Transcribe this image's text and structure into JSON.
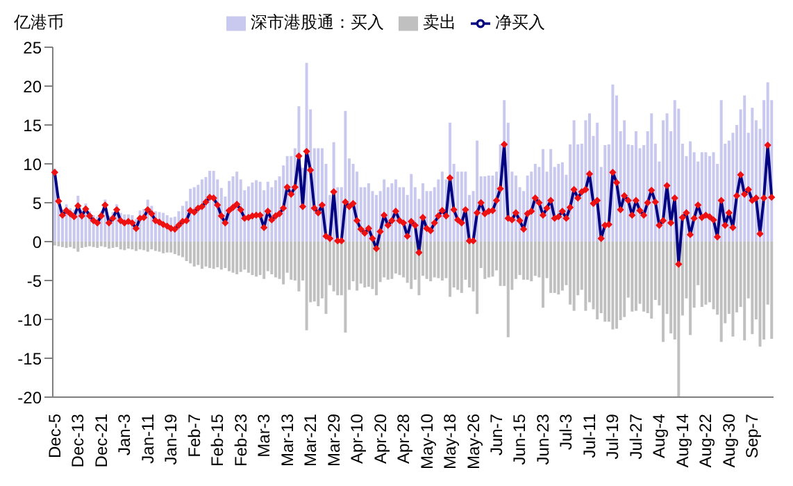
{
  "chart_data": {
    "type": "bar",
    "ylabel": "亿港币",
    "stacked": true,
    "legend": "top",
    "marker": "diamond",
    "categories": [
      "Dec-5",
      null,
      null,
      null,
      null,
      null,
      "Dec-13",
      null,
      null,
      null,
      null,
      null,
      "Dec-21",
      null,
      null,
      null,
      null,
      null,
      "Jan-3",
      null,
      null,
      null,
      null,
      null,
      "Jan-11",
      null,
      null,
      null,
      null,
      null,
      "Jan-19",
      null,
      null,
      null,
      null,
      null,
      "Feb-7",
      null,
      null,
      null,
      null,
      null,
      "Feb-15",
      null,
      null,
      null,
      null,
      null,
      "Feb-23",
      null,
      null,
      null,
      null,
      null,
      "Mar-3",
      null,
      null,
      null,
      null,
      null,
      "Mar-13",
      null,
      null,
      null,
      null,
      null,
      "Mar-21",
      null,
      null,
      null,
      null,
      null,
      "Mar-29",
      null,
      null,
      null,
      null,
      null,
      "Apr-10",
      null,
      null,
      null,
      null,
      null,
      "Apr-20",
      null,
      null,
      null,
      null,
      null,
      "Apr-28",
      null,
      null,
      null,
      null,
      null,
      "May-10",
      null,
      null,
      null,
      null,
      null,
      "May-18",
      null,
      null,
      null,
      null,
      null,
      "May-26",
      null,
      null,
      null,
      null,
      null,
      "Jun-7",
      null,
      null,
      null,
      null,
      null,
      "Jun-15",
      null,
      null,
      null,
      null,
      null,
      "Jun-23",
      null,
      null,
      null,
      null,
      null,
      "Jul-3",
      null,
      null,
      null,
      null,
      null,
      "Jul-11",
      null,
      null,
      null,
      null,
      null,
      "Jul-19",
      null,
      null,
      null,
      null,
      null,
      "Jul-27",
      null,
      null,
      null,
      null,
      null,
      "Aug-4",
      null,
      null,
      null,
      null,
      null,
      "Aug-14",
      null,
      null,
      null,
      null,
      null,
      "Aug-22",
      null,
      null,
      null,
      null,
      null,
      "Aug-30",
      null,
      null,
      null,
      null,
      null,
      "Sep-7",
      null,
      null,
      null,
      null,
      null
    ],
    "series": [
      {
        "name": "深市港股通：买入",
        "color": "#c9c9ef",
        "values": [
          9.4,
          5.8,
          4.1,
          4.8,
          4.3,
          4.1,
          5.9,
          4.1,
          4.9,
          3.9,
          3.4,
          3.2,
          3.9,
          5.4,
          3.3,
          3.8,
          4.8,
          3.7,
          3.5,
          3.5,
          3.4,
          2.9,
          4,
          4.2,
          5.4,
          4.6,
          3.9,
          3.8,
          3.7,
          3.4,
          3.1,
          3.2,
          3.9,
          4.6,
          5.2,
          6.8,
          7,
          7.3,
          8,
          8.3,
          9.1,
          9.1,
          8,
          6.9,
          5.8,
          7.8,
          8.4,
          9,
          8,
          6.6,
          7.1,
          7.6,
          7.9,
          7.7,
          6.6,
          7.7,
          7,
          7.9,
          8.4,
          9.8,
          11,
          11,
          12,
          17.4,
          9.5,
          23,
          17,
          12,
          12,
          12,
          10,
          6,
          12.8,
          7,
          7,
          16.8,
          10.7,
          10,
          9,
          7,
          7,
          7.5,
          6.5,
          6,
          6.5,
          8,
          7,
          7.5,
          8,
          7,
          7,
          6,
          8.7,
          7,
          5.5,
          7.5,
          6.5,
          6.5,
          7,
          8,
          9,
          8,
          15.3,
          10,
          9,
          9,
          9,
          6,
          6.5,
          13,
          8.4,
          8.4,
          8.5,
          8.5,
          9,
          12.5,
          18.2,
          15.3,
          9,
          8.5,
          7,
          6.5,
          8.5,
          9,
          10,
          9.6,
          11.9,
          9,
          11.9,
          9.6,
          10,
          10.2,
          8.6,
          12.5,
          15.6,
          12.5,
          12.6,
          15.6,
          16.5,
          13.6,
          15.3,
          9.6,
          12.4,
          12.5,
          20.2,
          18.8,
          14.2,
          15.6,
          12.5,
          12.4,
          14.2,
          12,
          12.4,
          14.2,
          16.5,
          12.6,
          10.3,
          15.6,
          16.5,
          14.2,
          18.2,
          17.1,
          12.6,
          11,
          12.9,
          11.5,
          10.3,
          11.5,
          11.5,
          11,
          11.5,
          10,
          18.2,
          12.6,
          13,
          14,
          15,
          17,
          18.8,
          14,
          17.2,
          15.6,
          14.5,
          18.2,
          20.5,
          18.2
        ]
      },
      {
        "name": "卖出",
        "color": "#c0c0c0",
        "values": [
          -0.5,
          -0.6,
          -0.7,
          -0.8,
          -0.7,
          -0.9,
          -1.3,
          -0.8,
          -0.7,
          -0.6,
          -0.7,
          -0.8,
          -0.6,
          -0.7,
          -0.9,
          -0.8,
          -0.7,
          -1,
          -1.1,
          -0.9,
          -1,
          -1.2,
          -1,
          -1.1,
          -1.3,
          -1,
          -1.2,
          -1.3,
          -1.5,
          -1.4,
          -1.4,
          -1.6,
          -1.8,
          -2,
          -2.5,
          -2.8,
          -3.2,
          -3,
          -3.5,
          -3.2,
          -3.4,
          -3.5,
          -3.3,
          -3.6,
          -3.4,
          -3.8,
          -4,
          -4.2,
          -3.9,
          -3.6,
          -4,
          -4.3,
          -4.5,
          -4.3,
          -4.8,
          -3.8,
          -4.2,
          -4.6,
          -4.8,
          -5.5,
          -4,
          -4.9,
          -5,
          -6.4,
          -5,
          -11.4,
          -7.8,
          -7.7,
          -8.3,
          -7.3,
          -9.3,
          -5.6,
          -6.4,
          -6.9,
          -6.9,
          -11.7,
          -6.2,
          -5.1,
          -6.3,
          -5.4,
          -5.9,
          -5.8,
          -6.1,
          -6.9,
          -5.2,
          -4.6,
          -4.9,
          -4.8,
          -4.1,
          -4.3,
          -4.6,
          -5.3,
          -6.1,
          -4.9,
          -6.9,
          -4.4,
          -4.8,
          -5.1,
          -4.6,
          -4.7,
          -5,
          -4.7,
          -7.1,
          -5.9,
          -6.2,
          -6.6,
          -4.9,
          -5.9,
          -6.4,
          -9.3,
          -3.4,
          -4.8,
          -4.6,
          -4.5,
          -3.7,
          -5.7,
          -5.7,
          -12.3,
          -6.2,
          -4.8,
          -4.3,
          -4.9,
          -4.9,
          -5.1,
          -4.4,
          -4.6,
          -8.5,
          -4.7,
          -6.6,
          -6.6,
          -6.8,
          -6.3,
          -5.6,
          -8.1,
          -8.9,
          -6.9,
          -6.2,
          -8.9,
          -7.8,
          -8.7,
          -10,
          -9.2,
          -10.3,
          -10.3,
          -11.3,
          -11.2,
          -10.1,
          -9.7,
          -7.2,
          -9,
          -8.9,
          -8,
          -9,
          -9.2,
          -9.9,
          -7.5,
          -8.2,
          -12.9,
          -9.3,
          -11.8,
          -12.6,
          -20,
          -9.5,
          -7.3,
          -12,
          -8.5,
          -5.6,
          -8.4,
          -8.1,
          -7.8,
          -8.7,
          -9.4,
          -12.9,
          -10.5,
          -9.3,
          -12.2,
          -9.1,
          -8.4,
          -12.7,
          -7.3,
          -11.9,
          -10,
          -13.5,
          -12.6,
          -8.1,
          -12.5
        ]
      },
      {
        "name": "净买入",
        "type": "line",
        "color": "#000080",
        "values": [
          8.9,
          5.2,
          3.4,
          4,
          3.6,
          3.2,
          4.6,
          3.3,
          4.2,
          3.3,
          2.7,
          2.4,
          3.3,
          4.7,
          2.4,
          3,
          4.1,
          2.7,
          2.4,
          2.6,
          2.4,
          1.7,
          3,
          3.1,
          4.1,
          3.6,
          2.7,
          2.5,
          2.2,
          2,
          1.7,
          1.6,
          2.1,
          2.6,
          2.7,
          4,
          3.8,
          4.3,
          4.5,
          5.1,
          5.7,
          5.6,
          4.7,
          3.3,
          2.4,
          4,
          4.4,
          4.8,
          4.1,
          3,
          3.1,
          3.3,
          3.4,
          3.4,
          1.8,
          3.9,
          2.8,
          3.3,
          3.6,
          4.3,
          7,
          6.1,
          7,
          11,
          4.5,
          11.6,
          9.2,
          4.3,
          3.7,
          4.7,
          0.7,
          0.4,
          6.4,
          0.1,
          0.1,
          5.1,
          4.5,
          4.9,
          2.7,
          1.6,
          1.1,
          1.7,
          0.4,
          -0.9,
          1.3,
          3.4,
          2.1,
          2.7,
          3.9,
          2.7,
          2.4,
          0.7,
          2.6,
          2.1,
          -1.4,
          3.1,
          1.7,
          1.4,
          2.4,
          3.3,
          4,
          3.3,
          8.2,
          4.1,
          2.8,
          2.4,
          4.1,
          0.1,
          0.1,
          3.7,
          5,
          3.6,
          3.9,
          4,
          5.3,
          6.8,
          12.5,
          3,
          2.8,
          3.7,
          2.7,
          1.6,
          3.6,
          3.9,
          5.6,
          5,
          3.4,
          4.3,
          5.3,
          3,
          3.2,
          3.9,
          3,
          4.4,
          6.7,
          5.6,
          6.4,
          6.7,
          8.7,
          4.9,
          5.3,
          0.4,
          2.1,
          2.2,
          8.9,
          7.6,
          4.1,
          5.9,
          5.3,
          3.4,
          5.3,
          4,
          3.4,
          5,
          6.6,
          5.1,
          2.1,
          2.7,
          7.2,
          2.4,
          5.6,
          -2.9,
          3.1,
          3.7,
          0.9,
          3,
          4.7,
          3.1,
          3.4,
          3.2,
          2.8,
          0.6,
          5.3,
          2.1,
          3.7,
          1.8,
          5.9,
          8.6,
          6.1,
          6.7,
          5.3,
          5.6,
          1,
          5.6,
          12.4,
          5.7
        ]
      }
    ],
    "ylim": [
      -20,
      25
    ],
    "yticks": [
      -20,
      -15,
      -10,
      -5,
      0,
      5,
      10,
      15,
      20,
      25
    ]
  }
}
